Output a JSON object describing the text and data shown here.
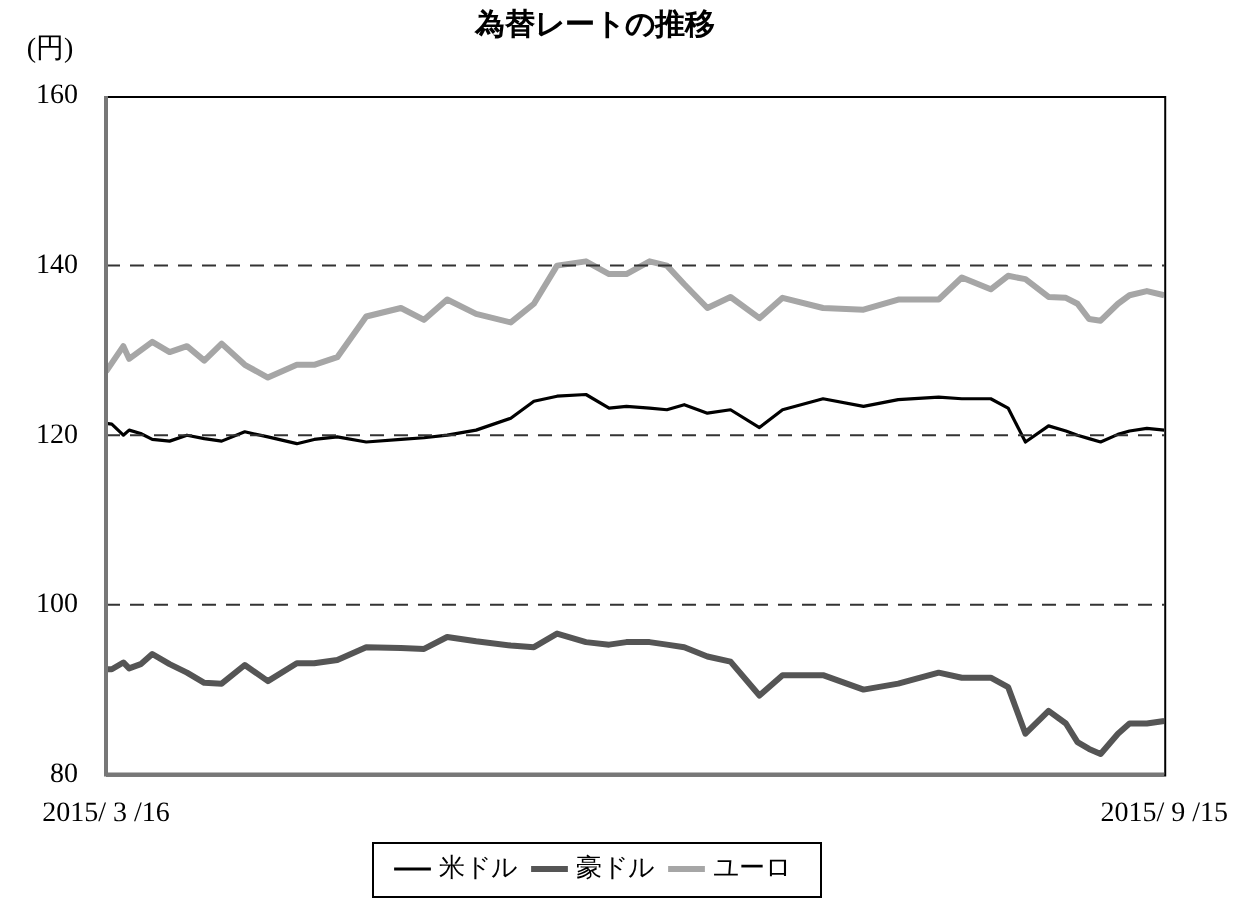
{
  "chart_data": {
    "type": "line",
    "title": "為替レートの推移",
    "ylabel": "(円)",
    "x": [
      "2015-03-16",
      "2015-03-17",
      "2015-03-19",
      "2015-03-20",
      "2015-03-22",
      "2015-03-24",
      "2015-03-27",
      "2015-03-30",
      "2015-04-02",
      "2015-04-05",
      "2015-04-09",
      "2015-04-13",
      "2015-04-18",
      "2015-04-21",
      "2015-04-25",
      "2015-04-30",
      "2015-05-06",
      "2015-05-10",
      "2015-05-14",
      "2015-05-19",
      "2015-05-25",
      "2015-05-29",
      "2015-06-02",
      "2015-06-07",
      "2015-06-11",
      "2015-06-14",
      "2015-06-18",
      "2015-06-21",
      "2015-06-24",
      "2015-06-28",
      "2015-07-02",
      "2015-07-07",
      "2015-07-11",
      "2015-07-18",
      "2015-07-25",
      "2015-07-31",
      "2015-08-07",
      "2015-08-11",
      "2015-08-16",
      "2015-08-19",
      "2015-08-22",
      "2015-08-26",
      "2015-08-29",
      "2015-08-31",
      "2015-09-02",
      "2015-09-04",
      "2015-09-07",
      "2015-09-09",
      "2015-09-12",
      "2015-09-15"
    ],
    "series": [
      {
        "name": "米ドル",
        "color": "#000000",
        "values": [
          121.4,
          121.3,
          120.0,
          120.6,
          120.2,
          119.5,
          119.3,
          120.0,
          119.6,
          119.3,
          120.4,
          119.8,
          119.0,
          119.5,
          119.8,
          119.2,
          119.5,
          119.7,
          120.0,
          120.6,
          122.0,
          124.0,
          124.6,
          124.8,
          123.2,
          123.4,
          123.2,
          123.0,
          123.6,
          122.6,
          123.0,
          120.9,
          123.0,
          124.3,
          123.4,
          124.2,
          124.5,
          124.3,
          124.3,
          123.2,
          119.2,
          121.1,
          120.5,
          120.0,
          119.6,
          119.2,
          120.1,
          120.5,
          120.8,
          120.6
        ]
      },
      {
        "name": "豪ドル",
        "color": "#555555",
        "values": [
          92.4,
          92.4,
          93.2,
          92.5,
          93.0,
          94.2,
          93.0,
          92.0,
          90.8,
          90.7,
          92.9,
          91.0,
          93.1,
          93.1,
          93.5,
          95.0,
          94.9,
          94.8,
          96.2,
          95.7,
          95.2,
          95.0,
          96.6,
          95.6,
          95.3,
          95.6,
          95.6,
          95.3,
          95.0,
          93.9,
          93.3,
          89.3,
          91.7,
          91.7,
          90.0,
          90.7,
          92.0,
          91.4,
          91.4,
          90.3,
          84.8,
          87.5,
          86.0,
          83.8,
          83.0,
          82.4,
          84.8,
          86.0,
          86.0,
          86.3
        ]
      },
      {
        "name": "ユーロ",
        "color": "#a6a6a6",
        "values": [
          127.5,
          128.5,
          130.5,
          129.0,
          130.0,
          131.0,
          129.8,
          130.5,
          128.8,
          130.8,
          128.3,
          126.8,
          128.3,
          128.3,
          129.2,
          134.0,
          135.0,
          133.6,
          136.0,
          134.3,
          133.3,
          135.5,
          140.0,
          140.5,
          139.0,
          139.0,
          140.5,
          140.0,
          137.8,
          135.0,
          136.3,
          133.8,
          136.2,
          135.0,
          134.8,
          136.0,
          136.0,
          138.6,
          137.2,
          138.8,
          138.4,
          136.3,
          136.2,
          135.5,
          133.7,
          133.5,
          135.5,
          136.5,
          137.0,
          136.5
        ]
      }
    ],
    "xlim": [
      "2015-03-16",
      "2015-09-15"
    ],
    "xticks": [
      {
        "value": "2015-03-16",
        "label": "2015/ 3 /16"
      },
      {
        "value": "2015-09-15",
        "label": "2015/ 9 /15"
      }
    ],
    "ylim": [
      80,
      160
    ],
    "yticks": [
      80,
      100,
      120,
      140,
      160
    ],
    "grid": "y",
    "line_style": "solid",
    "marker": "none",
    "legend": "bottom"
  }
}
